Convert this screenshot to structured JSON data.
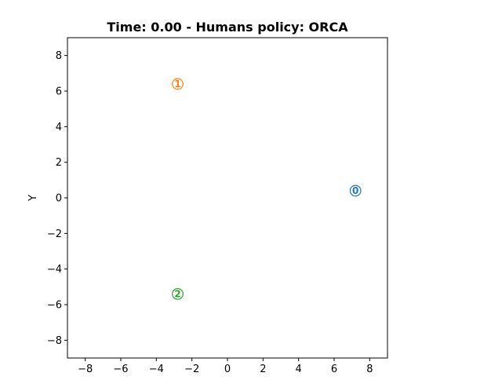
{
  "chart_data": {
    "type": "scatter",
    "title": "Time: 0.00 - Humans policy: ORCA",
    "xlabel": "",
    "ylabel": "Y",
    "xlim": [
      -9,
      9
    ],
    "ylim": [
      -9,
      9
    ],
    "xticks": [
      -8,
      -6,
      -4,
      -2,
      0,
      2,
      4,
      6,
      8
    ],
    "yticks": [
      -8,
      -6,
      -4,
      -2,
      0,
      2,
      4,
      6,
      8
    ],
    "xtick_labels": [
      "−8",
      "−6",
      "−4",
      "−2",
      "0",
      "2",
      "4",
      "6",
      "8"
    ],
    "ytick_labels": [
      "−8",
      "−6",
      "−4",
      "−2",
      "0",
      "2",
      "4",
      "6",
      "8"
    ],
    "grid": false,
    "legend": "none",
    "human_radius": 0.3,
    "points": [
      {
        "label": "0",
        "x": 7.2,
        "y": 0.4,
        "color": "#1f77b4"
      },
      {
        "label": "1",
        "x": -2.8,
        "y": 6.4,
        "color": "#ff7f0e"
      },
      {
        "label": "2",
        "x": -2.8,
        "y": -5.4,
        "color": "#2ca02c"
      }
    ]
  }
}
